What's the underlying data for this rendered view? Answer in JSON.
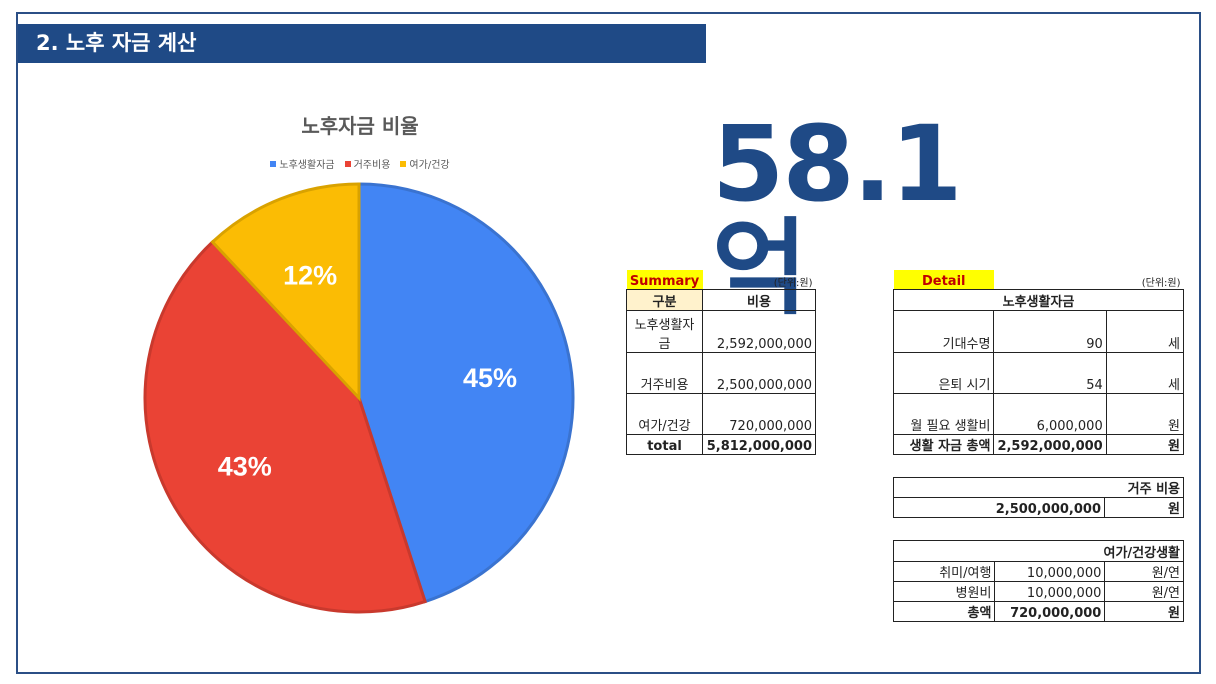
{
  "header": {
    "title": "2. 노후 자금 계산"
  },
  "chart": {
    "title": "노후자금 비율",
    "legend": [
      "노후생활자금",
      "거주비용",
      "여가/건강"
    ]
  },
  "chart_data": {
    "type": "pie",
    "title": "노후자금 비율",
    "categories": [
      "노후생활자금",
      "거주비용",
      "여가/건강"
    ],
    "values": [
      45,
      43,
      12
    ],
    "labels": [
      "45%",
      "43%",
      "12%"
    ],
    "colors": [
      "#4285f4",
      "#ea4335",
      "#fbbc04"
    ],
    "legend_position": "top"
  },
  "total_display": "58.1억",
  "summary": {
    "title": "Summary",
    "unit": "(단위:원)",
    "headers": [
      "구분",
      "비용"
    ],
    "rows": [
      {
        "label": "노후생활자금",
        "value": "2,592,000,000"
      },
      {
        "label": "거주비용",
        "value": "2,500,000,000"
      },
      {
        "label": "여가/건강",
        "value": "720,000,000"
      }
    ],
    "total": {
      "label": "total",
      "value": "5,812,000,000"
    }
  },
  "detail": {
    "title": "Detail",
    "unit": "(단위:원)",
    "living": {
      "header": "노후생활자금",
      "rows": [
        {
          "label": "기대수명",
          "value": "90",
          "unit": "세"
        },
        {
          "label": "은퇴 시기",
          "value": "54",
          "unit": "세"
        },
        {
          "label": "월 필요 생활비",
          "value": "6,000,000",
          "unit": "원"
        }
      ],
      "total": {
        "label": "생활 자금 총액",
        "value": "2,592,000,000",
        "unit": "원"
      }
    },
    "housing": {
      "header": "거주 비용",
      "value": "2,500,000,000",
      "unit": "원"
    },
    "leisure": {
      "header": "여가/건강생활",
      "rows": [
        {
          "label": "취미/여행",
          "value": "10,000,000",
          "unit": "원/연"
        },
        {
          "label": "병원비",
          "value": "10,000,000",
          "unit": "원/연"
        }
      ],
      "total": {
        "label": "총액",
        "value": "720,000,000",
        "unit": "원"
      }
    }
  }
}
